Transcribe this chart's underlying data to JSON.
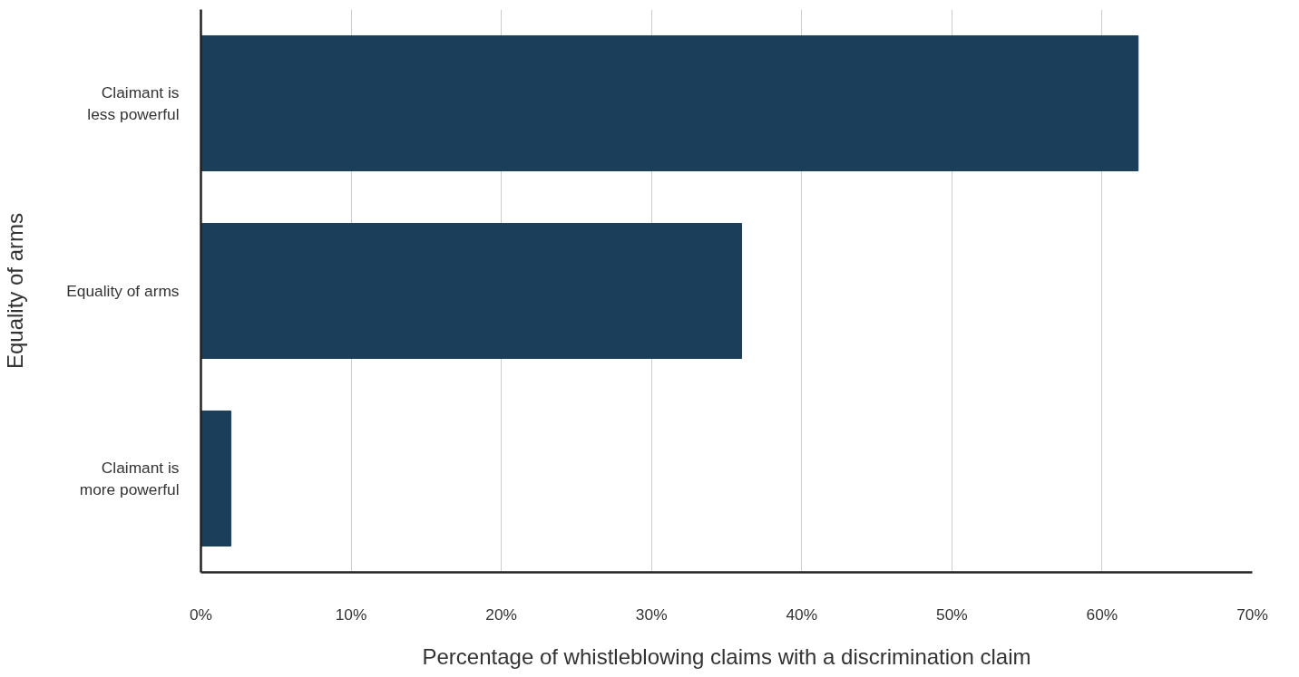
{
  "chart_data": {
    "type": "bar",
    "orientation": "horizontal",
    "xlabel": "Percentage of whistleblowing claims with a discrimination claim",
    "ylabel": "Equality of arms",
    "categories": [
      "Claimant is\nless powerful",
      "Equality of arms",
      "Claimant is\nmore powerful"
    ],
    "values": [
      62.4,
      36.0,
      2.0
    ],
    "color": "#1b3f5a",
    "xlim": [
      0,
      70
    ],
    "xticks": [
      {
        "value": 0,
        "label": "0%"
      },
      {
        "value": 10,
        "label": "10%"
      },
      {
        "value": 20,
        "label": "20%"
      },
      {
        "value": 30,
        "label": "30%"
      },
      {
        "value": 40,
        "label": "40%"
      },
      {
        "value": 50,
        "label": "50%"
      },
      {
        "value": 60,
        "label": "60%"
      },
      {
        "value": 70,
        "label": "70%"
      }
    ],
    "grid": "x"
  }
}
